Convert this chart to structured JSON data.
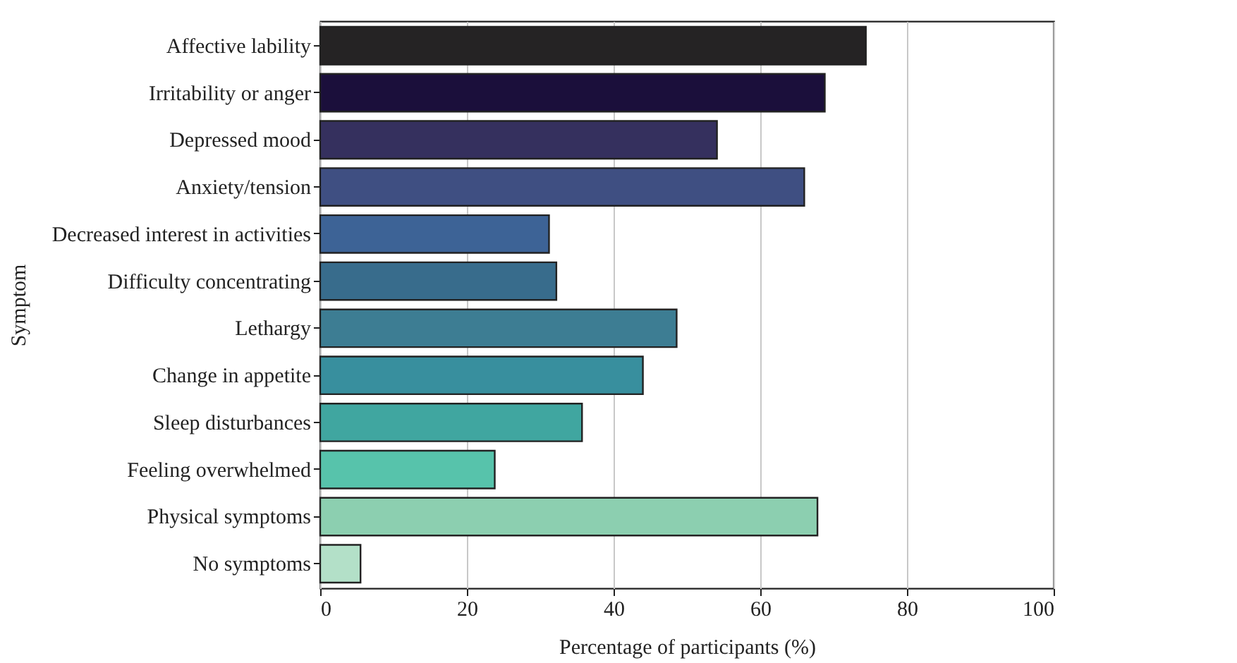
{
  "chart_data": {
    "type": "bar",
    "orientation": "horizontal",
    "xlabel": "Percentage of participants (%)",
    "ylabel": "Symptom",
    "categories": [
      "Affective lability",
      "Irritability or anger",
      "Depressed mood",
      "Anxiety/tension",
      "Decreased interest in activities",
      "Difficulty concentrating",
      "Lethargy",
      "Change in appetite",
      "Sleep disturbances",
      "Feeling overwhelmed",
      "Physical symptoms",
      "No symptoms"
    ],
    "values": [
      74.4,
      68.8,
      54.1,
      66.0,
      31.2,
      32.2,
      48.6,
      44.0,
      35.7,
      23.8,
      67.8,
      5.5
    ],
    "colors": [
      "#252324",
      "#1b0f3b",
      "#35305e",
      "#3f4f82",
      "#3d6396",
      "#386c8c",
      "#3d7d93",
      "#388f9e",
      "#40a6a0",
      "#57c3ab",
      "#8ccfb0",
      "#b3e0c8"
    ],
    "xlim": [
      0,
      100
    ],
    "xticks": [
      0,
      20,
      40,
      60,
      80,
      100
    ],
    "grid": "x",
    "legend": false
  }
}
